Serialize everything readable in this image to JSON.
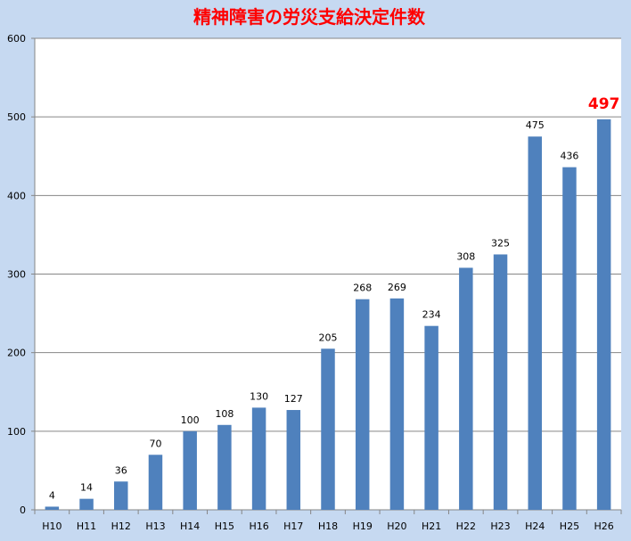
{
  "chart_data": {
    "type": "bar",
    "title": "精神障害の労災支給決定件数",
    "categories": [
      "H10",
      "H11",
      "H12",
      "H13",
      "H14",
      "H15",
      "H16",
      "H17",
      "H18",
      "H19",
      "H20",
      "H21",
      "H22",
      "H23",
      "H24",
      "H25",
      "H26"
    ],
    "values": [
      4,
      14,
      36,
      70,
      100,
      108,
      130,
      127,
      205,
      268,
      269,
      234,
      308,
      325,
      475,
      436,
      497
    ],
    "highlight_index": 16,
    "ylim": [
      0,
      600
    ],
    "yticks": [
      0,
      100,
      200,
      300,
      400,
      500,
      600
    ],
    "grid": true,
    "legend": "none",
    "colors": {
      "bar": "#4f81bd",
      "plot_background": "#ffffff",
      "background": "#c6d9f1",
      "gridline": "#868686",
      "title": "#ff0000",
      "highlight_label": "#ff0000"
    }
  }
}
